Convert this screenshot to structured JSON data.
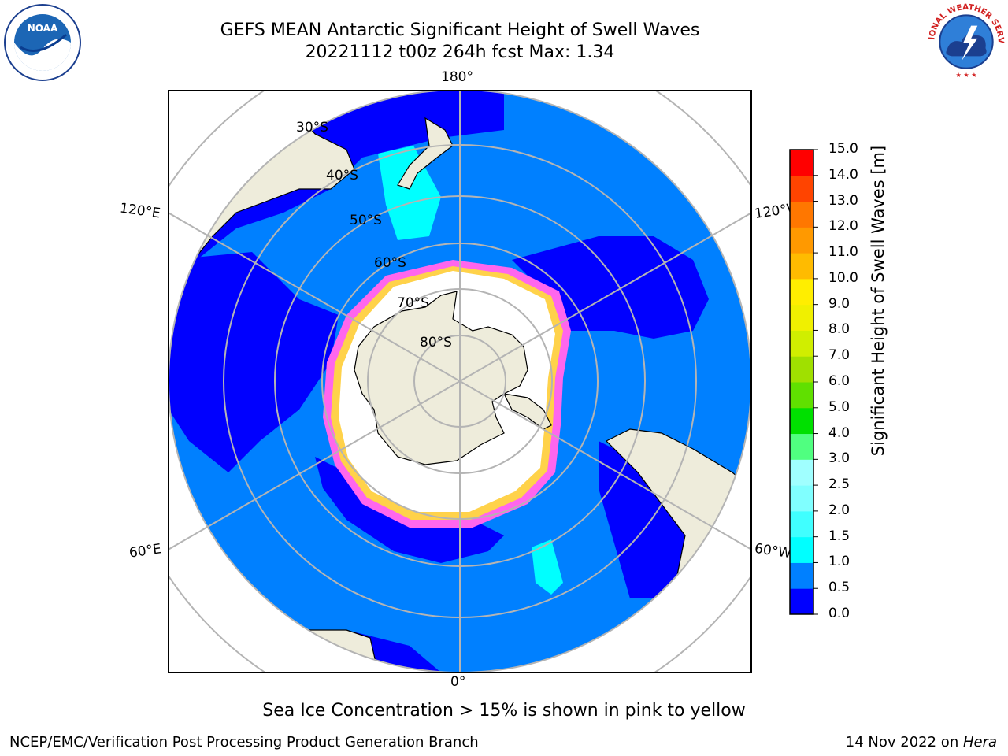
{
  "title": {
    "line1": "GEFS MEAN Antarctic Significant Height of Swell Waves",
    "line2": "20221112 t00z 264h fcst   Max: 1.34"
  },
  "logos": {
    "left": {
      "text": "NOAA",
      "icon": "noaa-logo-icon"
    },
    "right": {
      "text": "NATIONAL WEATHER SERVICE",
      "icon": "nws-logo-icon"
    }
  },
  "map": {
    "projection": "south polar stereographic",
    "lon_labels": {
      "top": "180°",
      "bottom": "0°",
      "upper_left": "120°E",
      "upper_right": "120°W",
      "lower_left": "60°E",
      "lower_right": "60°W"
    },
    "lat_labels": [
      "30°S",
      "40°S",
      "50°S",
      "60°S",
      "70°S",
      "80°S"
    ],
    "colors": {
      "ocean_low": "#0000ff",
      "ocean_mid": "#0080ff",
      "ocean_cyan": "#00ffff",
      "land": "#eeecdb",
      "ice": "#ffffff",
      "ice_edge_pink": "#ff66ee",
      "ice_edge_yellow": "#ffd24a",
      "gridline": "#b4b4b4"
    }
  },
  "colorbar": {
    "label": "Significant Height of Swell Waves [m]",
    "ticks": [
      "0.0",
      "0.5",
      "1.0",
      "1.5",
      "2.0",
      "2.5",
      "3.0",
      "4.0",
      "5.0",
      "6.0",
      "7.0",
      "8.0",
      "9.0",
      "10.0",
      "11.0",
      "12.0",
      "13.0",
      "14.0",
      "15.0"
    ],
    "colors": [
      "#0000ff",
      "#0080ff",
      "#00ffff",
      "#40ffff",
      "#80ffff",
      "#a0ffff",
      "#50ff80",
      "#00e000",
      "#60e000",
      "#a0e000",
      "#d0ee00",
      "#f0f000",
      "#ffee00",
      "#ffbb00",
      "#ff9900",
      "#ff7700",
      "#ff4400",
      "#ff0000"
    ]
  },
  "footnote": "Sea Ice Concentration > 15% is shown in pink to yellow",
  "footer": {
    "left": "NCEP/EMC/Verification Post Processing Product Generation Branch",
    "right_prefix": "14 Nov 2022 on ",
    "right_machine": "Hera"
  }
}
